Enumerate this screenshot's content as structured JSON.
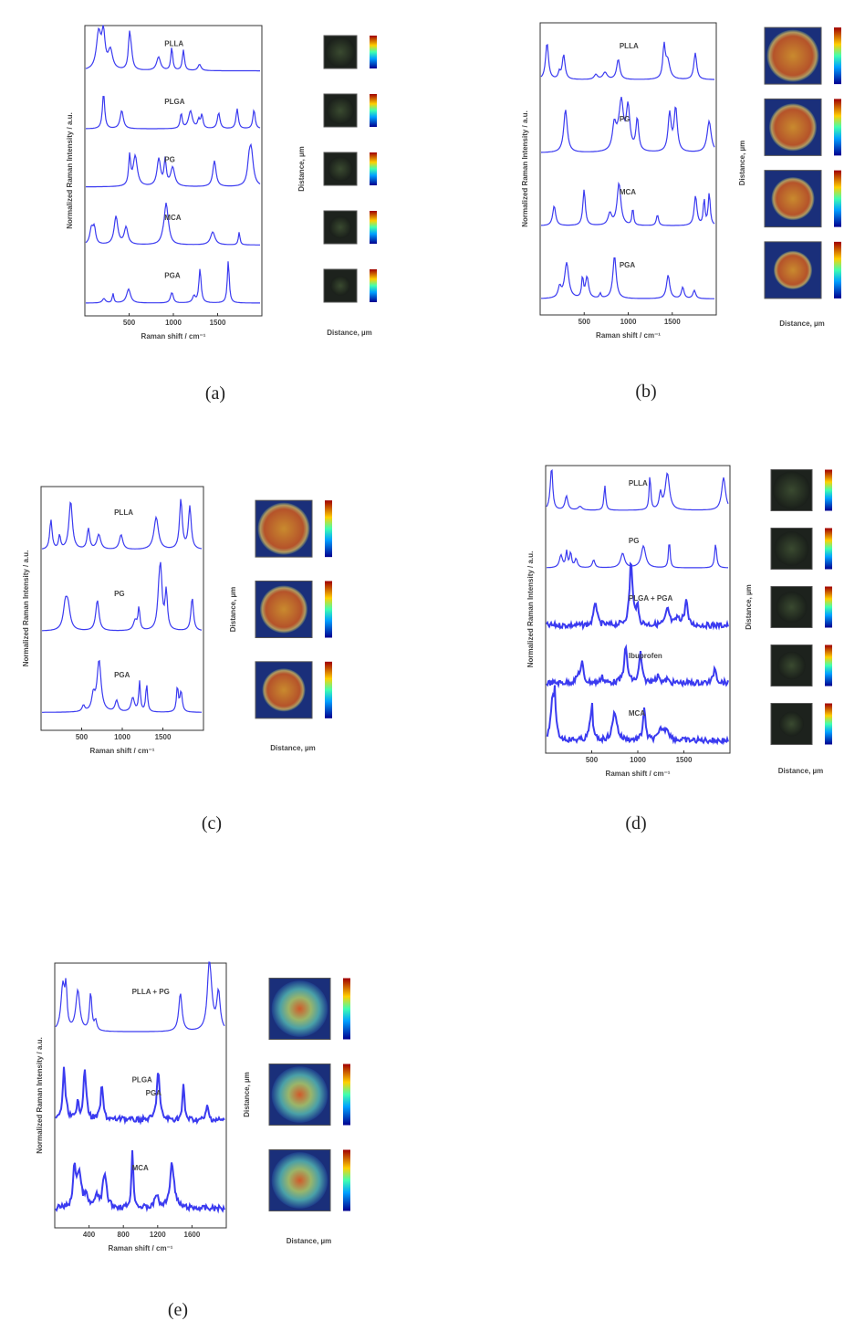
{
  "panels": [
    {
      "tag": "(a)",
      "y_label": "Normalized Raman Intensity / a.u.",
      "x_label": "Raman shift / cm⁻¹",
      "x_ticks": [
        "500",
        "1000",
        "1500"
      ],
      "traces": [
        [
          "PLLA"
        ],
        [
          "PLGA"
        ],
        [
          "PG"
        ],
        [
          "MCA"
        ],
        [
          "PGA"
        ]
      ],
      "map_y_label": "Distance, µm",
      "map_x_label": "Distance, µm"
    },
    {
      "tag": "(b)",
      "y_label": "Normalized Raman Intensity / a.u.",
      "x_label": "Raman shift / cm⁻¹",
      "x_ticks": [
        "500",
        "1000",
        "1500"
      ],
      "traces": [
        [
          "PLLA"
        ],
        [
          "PG"
        ],
        [
          "MCA"
        ],
        [
          "PGA"
        ]
      ],
      "map_y_label": "Distance, µm",
      "map_x_label": "Distance, µm"
    },
    {
      "tag": "(c)",
      "y_label": "Normalized Raman Intensity / a.u.",
      "x_label": "Raman shift / cm⁻¹",
      "x_ticks": [
        "500",
        "1000",
        "1500"
      ],
      "traces": [
        [
          "PLLA"
        ],
        [
          "PG"
        ],
        [
          "PGA"
        ]
      ],
      "map_y_label": "Distance, µm",
      "map_x_label": "Distance, µm"
    },
    {
      "tag": "(d)",
      "y_label": "Normalized Raman Intensity / a.u.",
      "x_label": "Raman shift / cm⁻¹",
      "x_ticks": [
        "500",
        "1000",
        "1500"
      ],
      "traces": [
        [
          "PLLA"
        ],
        [
          "PG"
        ],
        [
          "PLGA + PGA"
        ],
        [
          "Ibuprofen"
        ],
        [
          "MCA"
        ]
      ],
      "map_y_label": "Distance, µm",
      "map_x_label": "Distance, µm"
    },
    {
      "tag": "(e)",
      "y_label": "Normalized Raman Intensity / a.u.",
      "x_label": "Raman shift / cm⁻¹",
      "x_ticks": [
        "400",
        "800",
        "1200",
        "1600"
      ],
      "traces": [
        [
          "PLLA + PG"
        ],
        [
          "PLGA",
          "PGA"
        ],
        [
          "MCA"
        ]
      ],
      "map_y_label": "Distance, µm",
      "map_x_label": "Distance, µm"
    }
  ]
}
